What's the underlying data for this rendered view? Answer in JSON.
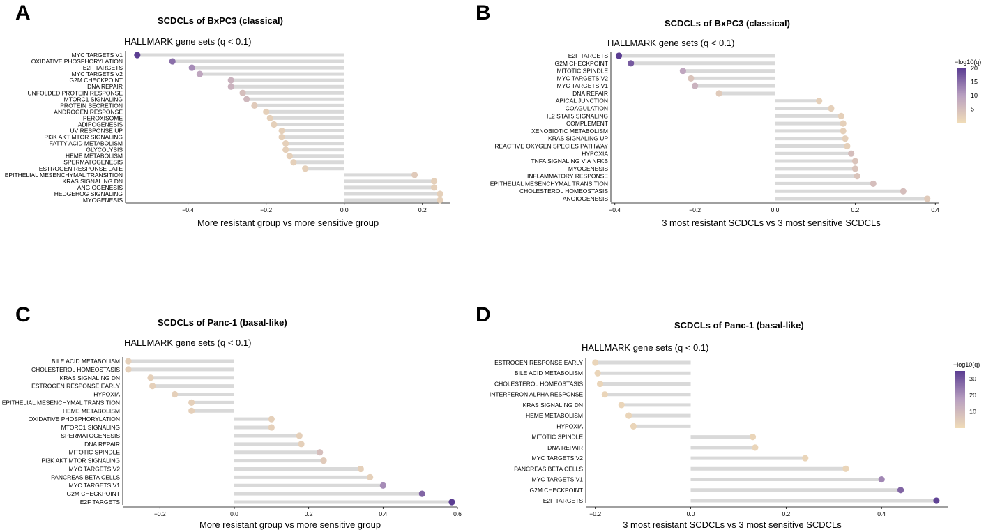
{
  "colors": {
    "stem": "#d9d9d9",
    "low": "#f0dcb8",
    "mid": "#b9a0c0",
    "high": "#5b3d92",
    "axis": "#000000"
  },
  "chart_data": [
    {
      "panel": "A",
      "type": "lollipop",
      "title": "SCDCLs of BxPC3 (classical)",
      "subtitle": "HALLMARK gene sets (q < 0.1)",
      "xlabel": "More resistant group vs more sensitive group",
      "xlim": [
        -0.56,
        0.27
      ],
      "ticks": [
        -0.4,
        -0.2,
        0.0,
        0.2
      ],
      "tick_labels": [
        "−0.4",
        "−0.2",
        "0.0",
        "0.2"
      ],
      "cmax": 20,
      "categories": [
        "MYC TARGETS V1",
        "OXIDATIVE PHOSPHORYLATION",
        "E2F TARGETS",
        "MYC TARGETS V2",
        "G2M CHECKPOINT",
        "DNA REPAIR",
        "UNFOLDED PROTEIN RESPONSE",
        "MTORC1 SIGNALING",
        "PROTEIN SECRETION",
        "ANDROGEN RESPONSE",
        "PEROXISOME",
        "ADIPOGENESIS",
        "UV RESPONSE UP",
        "PI3K AKT MTOR SIGNALING",
        "FATTY ACID METABOLISM",
        "GLYCOLYSIS",
        "HEME METABOLISM",
        "SPERMATOGENESIS",
        "ESTROGEN RESPONSE LATE",
        "EPITHELIAL MESENCHYMAL TRANSITION",
        "KRAS SIGNALING DN",
        "ANGIOGENESIS",
        "HEDGEHOG SIGNALING",
        "MYOGENESIS"
      ],
      "values": [
        -0.53,
        -0.44,
        -0.39,
        -0.37,
        -0.29,
        -0.29,
        -0.26,
        -0.25,
        -0.23,
        -0.2,
        -0.19,
        -0.18,
        -0.16,
        -0.16,
        -0.15,
        -0.15,
        -0.14,
        -0.13,
        -0.1,
        0.18,
        0.23,
        0.23,
        0.245,
        0.245
      ],
      "neg_log10_q": [
        20,
        15,
        12,
        9,
        7,
        7,
        5,
        6,
        3,
        2,
        2,
        2,
        2,
        2,
        2,
        2,
        2,
        2,
        2,
        3,
        2,
        2,
        2,
        2
      ],
      "legend": null
    },
    {
      "panel": "B",
      "type": "lollipop",
      "title": "SCDCLs of BxPC3 (classical)",
      "subtitle": "HALLMARK gene sets (q < 0.1)",
      "xlabel": "3 most resistant SCDCLs vs 3 most sensitive SCDCLs",
      "xlim": [
        -0.41,
        0.41
      ],
      "ticks": [
        -0.4,
        -0.2,
        0.0,
        0.2,
        0.4
      ],
      "tick_labels": [
        "−0.4",
        "−0.2",
        "0.0",
        "0.2",
        "0.4"
      ],
      "cmax": 20,
      "categories": [
        "E2F TARGETS",
        "G2M CHECKPOINT",
        "MITOTIC SPINDLE",
        "MYC TARGETS V2",
        "MYC TARGETS V1",
        "DNA REPAIR",
        "APICAL JUNCTION",
        "COAGULATION",
        "IL2 STAT5 SIGNALING",
        "COMPLEMENT",
        "XENOBIOTIC METABOLISM",
        "KRAS SIGNALING UP",
        "REACTIVE OXYGEN SPECIES PATHWAY",
        "HYPOXIA",
        "TNFA SIGNALING VIA NFKB",
        "MYOGENESIS",
        "INFLAMMATORY RESPONSE",
        "EPITHELIAL MESENCHYMAL TRANSITION",
        "CHOLESTEROL HOMEOSTASIS",
        "ANGIOGENESIS"
      ],
      "values": [
        -0.39,
        -0.36,
        -0.23,
        -0.21,
        -0.2,
        -0.14,
        0.11,
        0.14,
        0.165,
        0.17,
        0.17,
        0.175,
        0.18,
        0.19,
        0.2,
        0.2,
        0.205,
        0.245,
        0.32,
        0.38
      ],
      "neg_log10_q": [
        20,
        17,
        9,
        4,
        7,
        3,
        2,
        2,
        2,
        2,
        2,
        2,
        2,
        5,
        4,
        4,
        4,
        5,
        5,
        3
      ],
      "legend": {
        "title": "−log10(q)",
        "ticks": [
          5,
          10,
          15,
          20
        ]
      }
    },
    {
      "panel": "C",
      "type": "lollipop",
      "title": "SCDCLs of Panc-1 (basal-like)",
      "subtitle": "HALLMARK gene sets (q < 0.1)",
      "xlabel": "More resistant group vs more sensitive group",
      "xlim": [
        -0.3,
        0.6
      ],
      "ticks": [
        -0.2,
        0.0,
        0.2,
        0.4,
        0.6
      ],
      "tick_labels": [
        "−0.2",
        "0.0",
        "0.2",
        "0.4",
        "0.6"
      ],
      "cmax": 20,
      "categories": [
        "BILE ACID METABOLISM",
        "CHOLESTEROL HOMEOSTASIS",
        "KRAS SIGNALING DN",
        "ESTROGEN RESPONSE EARLY",
        "HYPOXIA",
        "EPITHELIAL MESENCHYMAL TRANSITION",
        "HEME METABOLISM",
        "OXIDATIVE PHOSPHORYLATION",
        "MTORC1 SIGNALING",
        "SPERMATOGENESIS",
        "DNA REPAIR",
        "MITOTIC SPINDLE",
        "PI3K AKT MTOR SIGNALING",
        "MYC TARGETS V2",
        "PANCREAS BETA CELLS",
        "MYC TARGETS V1",
        "G2M CHECKPOINT",
        "E2F TARGETS"
      ],
      "values": [
        -0.285,
        -0.285,
        -0.225,
        -0.22,
        -0.16,
        -0.115,
        -0.115,
        0.1,
        0.1,
        0.175,
        0.18,
        0.23,
        0.24,
        0.34,
        0.365,
        0.4,
        0.505,
        0.585
      ],
      "neg_log10_q": [
        2,
        2,
        2,
        2,
        2,
        2,
        2,
        2,
        2,
        2,
        2,
        5,
        3,
        2,
        2,
        12,
        16,
        22
      ],
      "legend": null
    },
    {
      "panel": "D",
      "type": "lollipop",
      "title": "SCDCLs of Panc-1 (basal-like)",
      "subtitle": "HALLMARK gene sets (q < 0.1)",
      "xlabel": "3 most resistant SCDCLs vs 3 most sensitive SCDCLs",
      "xlim": [
        -0.22,
        0.54
      ],
      "ticks": [
        -0.2,
        0.0,
        0.2,
        0.4
      ],
      "tick_labels": [
        "−0.2",
        "0.0",
        "0.2",
        "0.4"
      ],
      "cmax": 35,
      "categories": [
        "ESTROGEN RESPONSE EARLY",
        "BILE ACID METABOLISM",
        "CHOLESTEROL HOMEOSTASIS",
        "INTERFERON ALPHA RESPONSE",
        "KRAS SIGNALING DN",
        "HEME METABOLISM",
        "HYPOXIA",
        "MITOTIC SPINDLE",
        "DNA REPAIR",
        "MYC TARGETS V2",
        "PANCREAS BETA CELLS",
        "MYC TARGETS V1",
        "G2M CHECKPOINT",
        "E2F TARGETS"
      ],
      "values": [
        -0.2,
        -0.195,
        -0.19,
        -0.18,
        -0.145,
        -0.13,
        -0.12,
        0.13,
        0.135,
        0.24,
        0.325,
        0.4,
        0.44,
        0.515
      ],
      "neg_log10_q": [
        2,
        2,
        2,
        2,
        2,
        2,
        2,
        2,
        2,
        2,
        2,
        22,
        28,
        34
      ],
      "legend": {
        "title": "−log10(q)",
        "ticks": [
          10,
          20,
          30
        ]
      }
    }
  ]
}
